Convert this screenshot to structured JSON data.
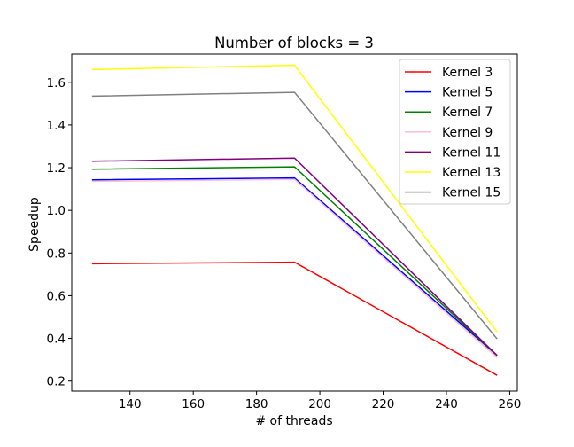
{
  "chart_data": {
    "type": "line",
    "title": "Number of blocks = 3",
    "xlabel": "# of threads",
    "ylabel": "Speedup",
    "x": [
      128,
      192,
      256
    ],
    "xlim": [
      121.6,
      262.4
    ],
    "ylim": [
      0.153,
      1.732
    ],
    "xticks": [
      140,
      160,
      180,
      200,
      220,
      240,
      260
    ],
    "yticks": [
      0.2,
      0.4,
      0.6,
      0.8,
      1.0,
      1.2,
      1.4,
      1.6
    ],
    "grid": false,
    "legend_position": "top-right",
    "series": [
      {
        "name": "Kernel 3",
        "color": "#ff0000",
        "values": [
          0.75,
          0.757,
          0.227
        ]
      },
      {
        "name": "Kernel 5",
        "color": "#0000ff",
        "values": [
          1.143,
          1.152,
          0.32
        ]
      },
      {
        "name": "Kernel 7",
        "color": "#008000",
        "values": [
          1.193,
          1.204,
          0.32
        ]
      },
      {
        "name": "Kernel 9",
        "color": "#ffc0cb",
        "values": [
          1.136,
          1.145,
          0.31
        ]
      },
      {
        "name": "Kernel 11",
        "color": "#800080",
        "values": [
          1.23,
          1.245,
          0.32
        ]
      },
      {
        "name": "Kernel 13",
        "color": "#ffff00",
        "values": [
          1.66,
          1.68,
          0.43
        ]
      },
      {
        "name": "Kernel 15",
        "color": "#808080",
        "values": [
          1.535,
          1.553,
          0.398
        ]
      }
    ]
  }
}
